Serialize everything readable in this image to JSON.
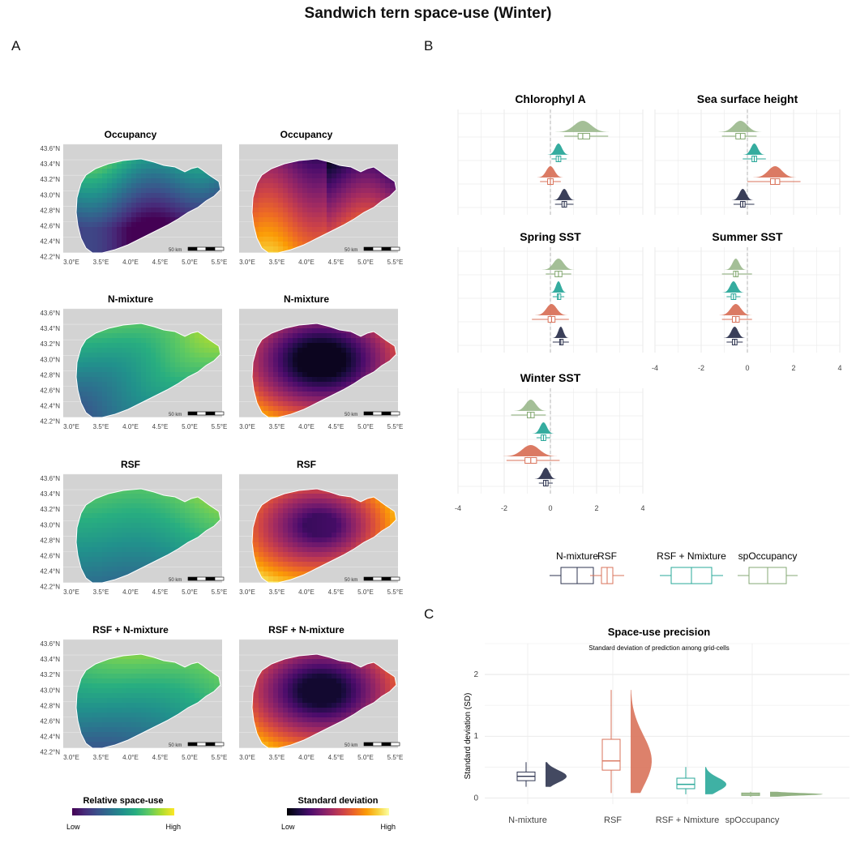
{
  "title": "Sandwich tern space-use (Winter)",
  "panel_labels": {
    "a": "A",
    "b": "B",
    "c": "C"
  },
  "colors": {
    "N-mixture": "#2f3550",
    "RSF": "#d9735b",
    "RSF + Nmixture": "#2aa89a",
    "spOccupancy": "#86aa74",
    "map_background": "#d3d3d3"
  },
  "maps": {
    "rows": [
      {
        "titles": [
          "Occupancy",
          "Occupancy"
        ]
      },
      {
        "titles": [
          "N-mixture",
          "N-mixture"
        ]
      },
      {
        "titles": [
          "RSF",
          "RSF"
        ]
      },
      {
        "titles": [
          "RSF + N-mixture",
          "RSF + N-mixture"
        ]
      }
    ],
    "lat_ticks": [
      "43.6°N",
      "43.4°N",
      "43.2°N",
      "43.0°N",
      "42.8°N",
      "42.6°N",
      "42.4°N",
      "42.2°N"
    ],
    "lon_ticks": [
      "3.0°E",
      "3.5°E",
      "4.0°E",
      "4.5°E",
      "5.0°E",
      "5.5°E"
    ],
    "scale_bar_label": "50 km",
    "legend_left": {
      "title": "Relative space-use",
      "low": "Low",
      "high": "High",
      "palette": "viridis"
    },
    "legend_right": {
      "title": "Standard deviation",
      "low": "Low",
      "high": "High",
      "palette": "inferno"
    }
  },
  "chart_data": [
    {
      "type": "box",
      "panel": "B",
      "x_ticks": [
        "-4",
        "-2",
        "0",
        "2",
        "4"
      ],
      "xlim": [
        -4,
        4
      ],
      "facets": [
        {
          "name": "Chlorophyl A",
          "estimates": [
            {
              "model": "spOccupancy",
              "median": 1.4,
              "q1": 1.2,
              "q3": 1.7,
              "min": 0.6,
              "max": 2.5
            },
            {
              "model": "RSF + Nmixture",
              "median": 0.35,
              "q1": 0.25,
              "q3": 0.45,
              "min": 0.05,
              "max": 0.7
            },
            {
              "model": "RSF",
              "median": 0.0,
              "q1": -0.12,
              "q3": 0.12,
              "min": -0.45,
              "max": 0.45
            },
            {
              "model": "N-mixture",
              "median": 0.6,
              "q1": 0.5,
              "q3": 0.7,
              "min": 0.2,
              "max": 1.0
            }
          ]
        },
        {
          "name": "Sea surface height",
          "estimates": [
            {
              "model": "spOccupancy",
              "median": -0.3,
              "q1": -0.5,
              "q3": -0.1,
              "min": -1.1,
              "max": 0.4
            },
            {
              "model": "RSF + Nmixture",
              "median": 0.3,
              "q1": 0.2,
              "q3": 0.4,
              "min": -0.2,
              "max": 0.8
            },
            {
              "model": "RSF",
              "median": 1.2,
              "q1": 1.0,
              "q3": 1.4,
              "min": 0.0,
              "max": 2.3
            },
            {
              "model": "N-mixture",
              "median": -0.2,
              "q1": -0.3,
              "q3": -0.1,
              "min": -0.6,
              "max": 0.3
            }
          ]
        },
        {
          "name": "Spring SST",
          "estimates": [
            {
              "model": "spOccupancy",
              "median": 0.35,
              "q1": 0.2,
              "q3": 0.5,
              "min": -0.2,
              "max": 0.9
            },
            {
              "model": "RSF + Nmixture",
              "median": 0.35,
              "q1": 0.3,
              "q3": 0.45,
              "min": 0.1,
              "max": 0.6
            },
            {
              "model": "RSF",
              "median": 0.05,
              "q1": -0.1,
              "q3": 0.2,
              "min": -0.8,
              "max": 0.8
            },
            {
              "model": "N-mixture",
              "median": 0.45,
              "q1": 0.4,
              "q3": 0.55,
              "min": 0.1,
              "max": 0.8
            }
          ]
        },
        {
          "name": "Summer SST",
          "estimates": [
            {
              "model": "spOccupancy",
              "median": -0.5,
              "q1": -0.6,
              "q3": -0.4,
              "min": -1.1,
              "max": 0.2
            },
            {
              "model": "RSF + Nmixture",
              "median": -0.6,
              "q1": -0.7,
              "q3": -0.5,
              "min": -0.9,
              "max": -0.3
            },
            {
              "model": "RSF",
              "median": -0.5,
              "q1": -0.65,
              "q3": -0.35,
              "min": -1.1,
              "max": 0.2
            },
            {
              "model": "N-mixture",
              "median": -0.55,
              "q1": -0.65,
              "q3": -0.45,
              "min": -0.9,
              "max": -0.2
            }
          ]
        },
        {
          "name": "Winter SST",
          "estimates": [
            {
              "model": "spOccupancy",
              "median": -0.85,
              "q1": -1.0,
              "q3": -0.7,
              "min": -1.7,
              "max": -0.2
            },
            {
              "model": "RSF + Nmixture",
              "median": -0.3,
              "q1": -0.4,
              "q3": -0.2,
              "min": -0.6,
              "max": 0.0
            },
            {
              "model": "RSF",
              "median": -0.85,
              "q1": -1.1,
              "q3": -0.6,
              "min": -1.9,
              "max": 0.4
            },
            {
              "model": "N-mixture",
              "median": -0.2,
              "q1": -0.3,
              "q3": -0.1,
              "min": -0.5,
              "max": 0.1
            }
          ]
        }
      ],
      "legend": [
        "N-mixture",
        "RSF",
        "RSF + Nmixture",
        "spOccupancy"
      ]
    },
    {
      "type": "box",
      "panel": "C",
      "title": "Space-use precision",
      "subtitle": "Standard deviation of prediction among grid-cells",
      "ylabel": "Standard deviation (SD)",
      "y_ticks": [
        "0",
        "1",
        "2"
      ],
      "ylim": [
        -0.1,
        2.5
      ],
      "categories": [
        "N-mixture",
        "RSF",
        "RSF + Nmixture",
        "spOccupancy"
      ],
      "boxes": [
        {
          "model": "N-mixture",
          "median": 0.35,
          "q1": 0.28,
          "q3": 0.42,
          "min": 0.18,
          "max": 0.58
        },
        {
          "model": "RSF",
          "median": 0.6,
          "q1": 0.45,
          "q3": 0.95,
          "min": 0.08,
          "max": 1.75
        },
        {
          "model": "RSF + Nmixture",
          "median": 0.22,
          "q1": 0.15,
          "q3": 0.32,
          "min": 0.06,
          "max": 0.5
        },
        {
          "model": "spOccupancy",
          "median": 0.06,
          "q1": 0.04,
          "q3": 0.08,
          "min": 0.02,
          "max": 0.1
        }
      ]
    }
  ]
}
